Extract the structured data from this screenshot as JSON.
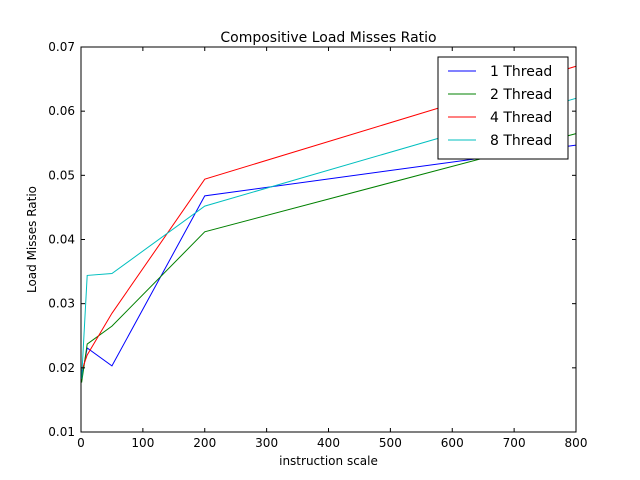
{
  "chart_data": {
    "type": "line",
    "title": "Compositive Load Misses Ratio",
    "xlabel": "instruction scale",
    "ylabel": "Load Misses Ratio",
    "xlim": [
      0,
      800
    ],
    "ylim": [
      0.01,
      0.07
    ],
    "xticks": [
      0,
      100,
      200,
      300,
      400,
      500,
      600,
      700,
      800
    ],
    "xtick_labels": [
      "0",
      "100",
      "200",
      "300",
      "400",
      "500",
      "600",
      "700",
      "800"
    ],
    "yticks": [
      0.01,
      0.02,
      0.03,
      0.04,
      0.05,
      0.06,
      0.07
    ],
    "ytick_labels": [
      "0.01",
      "0.02",
      "0.03",
      "0.04",
      "0.05",
      "0.06",
      "0.07"
    ],
    "grid": false,
    "legend_position": "top-right",
    "series": [
      {
        "name": "1 Thread",
        "color": "#0000ff",
        "x": [
          1,
          10,
          50,
          200,
          800
        ],
        "y": [
          0.0185,
          0.0231,
          0.0203,
          0.0468,
          0.0547
        ]
      },
      {
        "name": "2 Thread",
        "color": "#008000",
        "x": [
          1,
          10,
          50,
          200,
          800
        ],
        "y": [
          0.0177,
          0.0237,
          0.0265,
          0.0412,
          0.0565
        ]
      },
      {
        "name": "4 Thread",
        "color": "#ff0000",
        "x": [
          1,
          10,
          50,
          200,
          800
        ],
        "y": [
          0.0195,
          0.022,
          0.0285,
          0.0494,
          0.067
        ]
      },
      {
        "name": "8 Thread",
        "color": "#00bfbf",
        "x": [
          1,
          10,
          50,
          200,
          800
        ],
        "y": [
          0.0183,
          0.0344,
          0.0347,
          0.0452,
          0.062
        ]
      }
    ]
  }
}
